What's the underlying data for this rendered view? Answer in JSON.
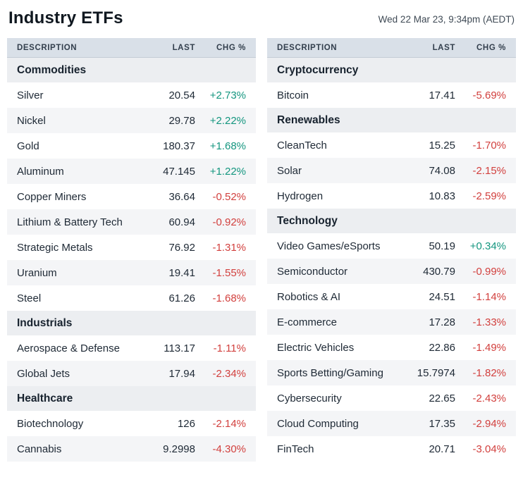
{
  "header": {
    "title": "Industry ETFs",
    "timestamp": "Wed 22 Mar 23, 9:34pm (AEDT)"
  },
  "columns": {
    "description": "DESCRIPTION",
    "last": "LAST",
    "chg": "CHG %"
  },
  "colors": {
    "positive": "#14967f",
    "negative": "#d2403e",
    "header_bg": "#d9e0e8",
    "section_bg": "#eceef1",
    "alt_row_bg": "#f4f5f7"
  },
  "tables": [
    {
      "sections": [
        {
          "label": "Commodities",
          "rows": [
            {
              "name": "Silver",
              "last": "20.54",
              "chg": "+2.73%",
              "dir": "up"
            },
            {
              "name": "Nickel",
              "last": "29.78",
              "chg": "+2.22%",
              "dir": "up"
            },
            {
              "name": "Gold",
              "last": "180.37",
              "chg": "+1.68%",
              "dir": "up"
            },
            {
              "name": "Aluminum",
              "last": "47.145",
              "chg": "+1.22%",
              "dir": "up"
            },
            {
              "name": "Copper Miners",
              "last": "36.64",
              "chg": "-0.52%",
              "dir": "down"
            },
            {
              "name": "Lithium & Battery Tech",
              "last": "60.94",
              "chg": "-0.92%",
              "dir": "down"
            },
            {
              "name": "Strategic Metals",
              "last": "76.92",
              "chg": "-1.31%",
              "dir": "down"
            },
            {
              "name": "Uranium",
              "last": "19.41",
              "chg": "-1.55%",
              "dir": "down"
            },
            {
              "name": "Steel",
              "last": "61.26",
              "chg": "-1.68%",
              "dir": "down"
            }
          ]
        },
        {
          "label": "Industrials",
          "rows": [
            {
              "name": "Aerospace & Defense",
              "last": "113.17",
              "chg": "-1.11%",
              "dir": "down"
            },
            {
              "name": "Global Jets",
              "last": "17.94",
              "chg": "-2.34%",
              "dir": "down"
            }
          ]
        },
        {
          "label": "Healthcare",
          "rows": [
            {
              "name": "Biotechnology",
              "last": "126",
              "chg": "-2.14%",
              "dir": "down"
            },
            {
              "name": "Cannabis",
              "last": "9.2998",
              "chg": "-4.30%",
              "dir": "down"
            }
          ]
        }
      ]
    },
    {
      "sections": [
        {
          "label": "Cryptocurrency",
          "rows": [
            {
              "name": "Bitcoin",
              "last": "17.41",
              "chg": "-5.69%",
              "dir": "down"
            }
          ]
        },
        {
          "label": "Renewables",
          "rows": [
            {
              "name": "CleanTech",
              "last": "15.25",
              "chg": "-1.70%",
              "dir": "down"
            },
            {
              "name": "Solar",
              "last": "74.08",
              "chg": "-2.15%",
              "dir": "down"
            },
            {
              "name": "Hydrogen",
              "last": "10.83",
              "chg": "-2.59%",
              "dir": "down"
            }
          ]
        },
        {
          "label": "Technology",
          "rows": [
            {
              "name": "Video Games/eSports",
              "last": "50.19",
              "chg": "+0.34%",
              "dir": "up"
            },
            {
              "name": "Semiconductor",
              "last": "430.79",
              "chg": "-0.99%",
              "dir": "down"
            },
            {
              "name": "Robotics & AI",
              "last": "24.51",
              "chg": "-1.14%",
              "dir": "down"
            },
            {
              "name": "E-commerce",
              "last": "17.28",
              "chg": "-1.33%",
              "dir": "down"
            },
            {
              "name": "Electric Vehicles",
              "last": "22.86",
              "chg": "-1.49%",
              "dir": "down"
            },
            {
              "name": "Sports Betting/Gaming",
              "last": "15.7974",
              "chg": "-1.82%",
              "dir": "down"
            },
            {
              "name": "Cybersecurity",
              "last": "22.65",
              "chg": "-2.43%",
              "dir": "down"
            },
            {
              "name": "Cloud Computing",
              "last": "17.35",
              "chg": "-2.94%",
              "dir": "down"
            },
            {
              "name": "FinTech",
              "last": "20.71",
              "chg": "-3.04%",
              "dir": "down"
            }
          ]
        }
      ]
    }
  ]
}
